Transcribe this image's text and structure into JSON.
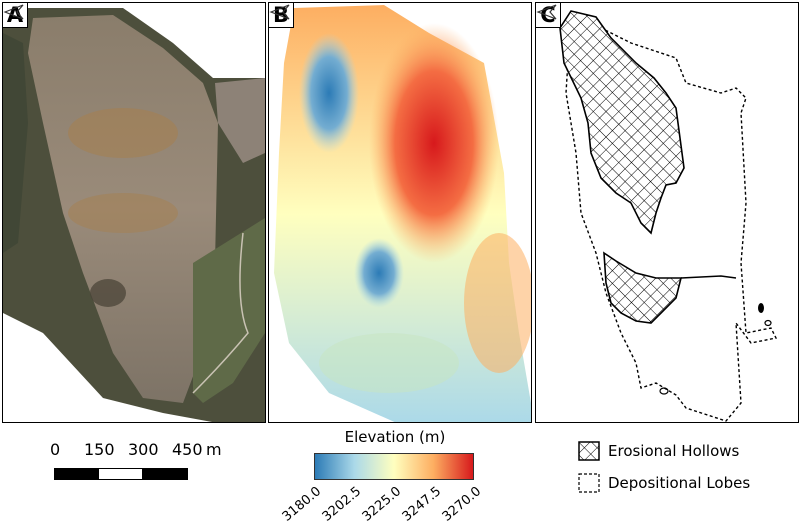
{
  "panels": [
    {
      "label": "A",
      "kind": "orthophoto"
    },
    {
      "label": "B",
      "kind": "elevation"
    },
    {
      "label": "C",
      "kind": "classification"
    }
  ],
  "scale_bar": {
    "ticks": [
      "0",
      "150",
      "300",
      "450"
    ],
    "unit": "m"
  },
  "elevation_legend": {
    "title": "Elevation (m)",
    "tick_labels": [
      "3180.0",
      "3202.5",
      "3225.0",
      "3247.5",
      "3270.0"
    ],
    "colors": [
      "#2c7bb6",
      "#abd9e9",
      "#ffffbf",
      "#fdae61",
      "#d7191c"
    ]
  },
  "class_legend": {
    "items": [
      {
        "label": "Erosional Hollows",
        "style": "crosshatch"
      },
      {
        "label": "Depositional Lobes",
        "style": "dashed"
      }
    ]
  },
  "north_arrow_icon": "north-arrow-icon"
}
